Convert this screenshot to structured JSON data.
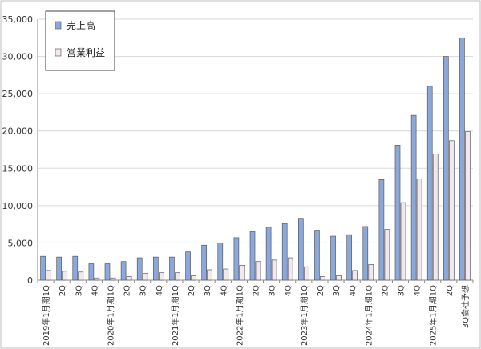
{
  "chart_data": {
    "type": "bar",
    "categories": [
      "2019年1月期1Q",
      "2Q",
      "3Q",
      "4Q",
      "2020年1月期1Q",
      "2Q",
      "3Q",
      "4Q",
      "2021年1月期1Q",
      "2Q",
      "3Q",
      "4Q",
      "2022年1月期1Q",
      "2Q",
      "3Q",
      "4Q",
      "2023年1月期1Q",
      "2Q",
      "3Q",
      "4Q",
      "2024年1月期1Q",
      "2Q",
      "3Q",
      "4Q",
      "2025年1月期1Q",
      "2Q",
      "3Q会社予想"
    ],
    "series": [
      {
        "name": "売上高",
        "color": "#8aa8d8",
        "values": [
          3200,
          3100,
          3200,
          2200,
          2200,
          2500,
          3000,
          3100,
          3100,
          3800,
          4700,
          5000,
          5700,
          6500,
          7100,
          7600,
          8300,
          6700,
          5900,
          6100,
          7200,
          13500,
          18100,
          22100,
          26000,
          30000,
          32500
        ]
      },
      {
        "name": "営業利益",
        "color": "#f5e6e8",
        "values": [
          1300,
          1200,
          1100,
          300,
          300,
          500,
          900,
          1000,
          1000,
          600,
          1400,
          1500,
          2000,
          2500,
          2700,
          3000,
          1800,
          500,
          600,
          1300,
          2100,
          6800,
          10400,
          13600,
          16900,
          18700,
          19900
        ]
      }
    ],
    "ylim": [
      0,
      35000
    ],
    "yticks": [
      0,
      5000,
      10000,
      15000,
      20000,
      25000,
      30000,
      35000
    ],
    "ytick_labels": [
      "0",
      "5,000",
      "10,000",
      "15,000",
      "20,000",
      "25,000",
      "30,000",
      "35,000"
    ],
    "grid": true,
    "legend": "top-left"
  }
}
